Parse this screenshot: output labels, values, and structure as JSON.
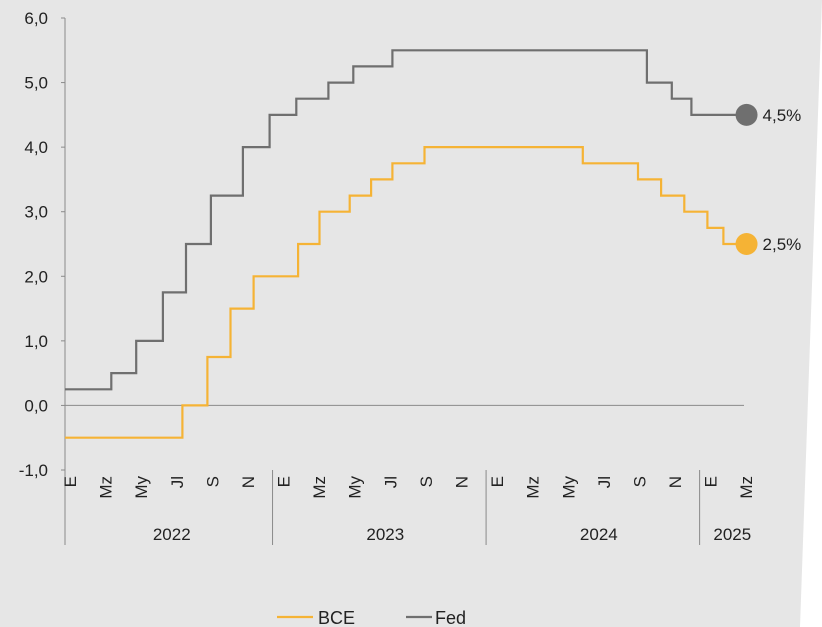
{
  "chart_data": {
    "type": "line",
    "step": true,
    "ylim": [
      -1,
      6
    ],
    "yticks": [
      "-1,0",
      "0,0",
      "1,0",
      "2,0",
      "3,0",
      "4,0",
      "5,0",
      "6,0"
    ],
    "xlim": [
      "2022-01",
      "2025-04"
    ],
    "month_ticks": [
      {
        "date": "2022-01",
        "label": "E"
      },
      {
        "date": "2022-03",
        "label": "Mz"
      },
      {
        "date": "2022-05",
        "label": "My"
      },
      {
        "date": "2022-07",
        "label": "Jl"
      },
      {
        "date": "2022-09",
        "label": "S"
      },
      {
        "date": "2022-11",
        "label": "N"
      },
      {
        "date": "2023-01",
        "label": "E"
      },
      {
        "date": "2023-03",
        "label": "Mz"
      },
      {
        "date": "2023-05",
        "label": "My"
      },
      {
        "date": "2023-07",
        "label": "Jl"
      },
      {
        "date": "2023-09",
        "label": "S"
      },
      {
        "date": "2023-11",
        "label": "N"
      },
      {
        "date": "2024-01",
        "label": "E"
      },
      {
        "date": "2024-03",
        "label": "Mz"
      },
      {
        "date": "2024-05",
        "label": "My"
      },
      {
        "date": "2024-07",
        "label": "Jl"
      },
      {
        "date": "2024-09",
        "label": "S"
      },
      {
        "date": "2024-11",
        "label": "N"
      },
      {
        "date": "2025-01",
        "label": "E"
      },
      {
        "date": "2025-03",
        "label": "Mz"
      }
    ],
    "years": [
      {
        "label": "2022",
        "start": "2022-01",
        "end": "2023-01"
      },
      {
        "label": "2023",
        "start": "2023-01",
        "end": "2024-01"
      },
      {
        "label": "2024",
        "start": "2024-01",
        "end": "2025-01"
      },
      {
        "label": "2025",
        "start": "2025-01",
        "end": "2025-04"
      }
    ],
    "series": [
      {
        "name": "Fed",
        "color": "#6f6f6f",
        "end_label": "4,5%",
        "x": [
          "2022-01",
          "2022-03.6",
          "2022-05",
          "2022-06.5",
          "2022-07.8",
          "2022-09.2",
          "2022-11",
          "2022-12.5",
          "2023-02",
          "2023-03.8",
          "2023-05.2",
          "2023-07.4",
          "2024-09.7",
          "2024-11.1",
          "2024-12.2",
          "2025-03.3"
        ],
        "values": [
          0.25,
          0.5,
          1.0,
          1.75,
          2.5,
          3.25,
          4.0,
          4.5,
          4.75,
          5.0,
          5.25,
          5.5,
          5.0,
          4.75,
          4.5,
          4.5
        ]
      },
      {
        "name": "BCE",
        "color": "#f5b335",
        "end_label": "2,5%",
        "x": [
          "2022-01",
          "2022-07.6",
          "2022-09",
          "2022-10.3",
          "2022-11.6",
          "2023-02.1",
          "2023-03.3",
          "2023-05",
          "2023-06.2",
          "2023-07.4",
          "2023-09.2",
          "2024-06.1",
          "2024-09.2",
          "2024-10.5",
          "2024-11.8",
          "2025-01.1",
          "2025-02",
          "2025-03.3"
        ],
        "values": [
          -0.5,
          0.0,
          0.75,
          1.5,
          2.0,
          2.5,
          3.0,
          3.25,
          3.5,
          3.75,
          4.0,
          3.75,
          3.5,
          3.25,
          3.0,
          2.75,
          2.5,
          2.5
        ]
      }
    ],
    "legend": [
      "BCE",
      "Fed"
    ]
  }
}
